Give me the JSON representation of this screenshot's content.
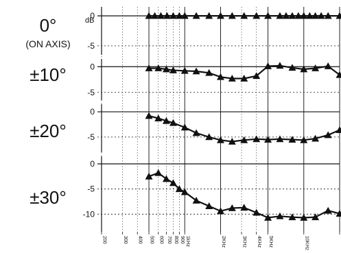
{
  "chart_data": {
    "type": "line",
    "x_axis": {
      "scale": "log",
      "range": [
        200,
        20000
      ],
      "tick_labels": [
        "200",
        "300",
        "400",
        "500",
        "600",
        "700",
        "800",
        "900",
        "1kHz",
        "2KHz",
        "3KHz",
        "4KHz",
        "5KHz",
        "10KHz",
        "20KHz"
      ],
      "tick_values": [
        200,
        300,
        400,
        500,
        600,
        700,
        800,
        900,
        1000,
        2000,
        3000,
        4000,
        5000,
        10000,
        20000
      ]
    },
    "panels": [
      {
        "label": "0°",
        "sublabel": "(ON AXIS)",
        "unit_label": "dB",
        "ylim": [
          -6.5,
          1.5
        ],
        "y_ticks": [
          0,
          -5
        ],
        "y_tick_labels": [
          "0",
          "-5"
        ],
        "x": [
          500,
          560,
          630,
          710,
          800,
          900,
          1000,
          1250,
          1600,
          2000,
          2500,
          3150,
          4000,
          5000,
          6300,
          7100,
          8000,
          9000,
          10000,
          11200,
          12500,
          14000,
          16000,
          20000
        ],
        "y": [
          0,
          0,
          0,
          0,
          0,
          0,
          0,
          0,
          0,
          0,
          0,
          0,
          0,
          0,
          0,
          0,
          0,
          0,
          0,
          0,
          0,
          0,
          0,
          0
        ]
      },
      {
        "label": "±10°",
        "ylim": [
          -6.5,
          1.5
        ],
        "y_ticks": [
          0,
          -5
        ],
        "y_tick_labels": [
          "0",
          "-5"
        ],
        "x": [
          500,
          600,
          700,
          800,
          1000,
          1250,
          1600,
          2000,
          2500,
          3150,
          4000,
          5000,
          6300,
          8000,
          10000,
          12500,
          16000,
          20000
        ],
        "y": [
          -0.3,
          -0.3,
          -0.5,
          -0.7,
          -0.8,
          -0.9,
          -1.2,
          -2.0,
          -2.3,
          -2.3,
          -1.8,
          0.1,
          0.2,
          -0.2,
          -0.5,
          -0.3,
          0.1,
          -1.6
        ]
      },
      {
        "label": "±20°",
        "ylim": [
          -8,
          1.5
        ],
        "y_ticks": [
          0,
          -5
        ],
        "y_tick_labels": [
          "0",
          "-5"
        ],
        "x": [
          500,
          600,
          700,
          800,
          1000,
          1250,
          1600,
          2000,
          2500,
          3150,
          4000,
          5000,
          6300,
          8000,
          10000,
          12500,
          16000,
          20000
        ],
        "y": [
          -0.8,
          -1.3,
          -1.8,
          -2.2,
          -3.1,
          -4.2,
          -5.0,
          -5.6,
          -5.9,
          -5.6,
          -5.4,
          -5.5,
          -5.4,
          -5.5,
          -5.6,
          -5.3,
          -4.6,
          -3.6
        ]
      },
      {
        "label": "±30°",
        "ylim": [
          -13.5,
          1.5
        ],
        "y_ticks": [
          0,
          -5,
          -10
        ],
        "y_tick_labels": [
          "0",
          "-5",
          "-10"
        ],
        "x": [
          500,
          600,
          700,
          800,
          900,
          1000,
          1250,
          1600,
          2000,
          2500,
          3150,
          4000,
          5000,
          6300,
          8000,
          10000,
          12500,
          16000,
          20000
        ],
        "y": [
          -2.5,
          -1.8,
          -3.0,
          -3.8,
          -5.0,
          -5.6,
          -7.3,
          -8.4,
          -9.4,
          -8.8,
          -8.7,
          -9.7,
          -10.7,
          -10.4,
          -10.6,
          -10.7,
          -10.6,
          -9.3,
          -9.9
        ]
      }
    ]
  }
}
